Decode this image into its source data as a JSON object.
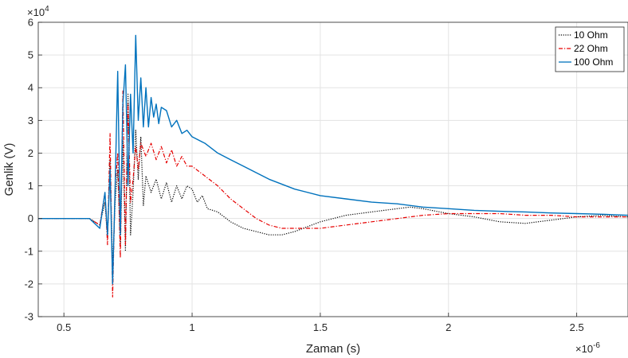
{
  "chart_data": {
    "type": "line",
    "title": "",
    "xlabel": "Zaman (s)",
    "ylabel": "Genlik (V)",
    "x_multiplier_label": "×10",
    "x_multiplier_exp": "-6",
    "y_multiplier_label": "×10",
    "y_multiplier_exp": "4",
    "xlim": [
      0.4,
      2.7
    ],
    "ylim": [
      -3,
      6
    ],
    "x_ticks": [
      0.5,
      1,
      1.5,
      2,
      2.5
    ],
    "x_tick_labels": [
      "0.5",
      "1",
      "1.5",
      "2",
      "2.5"
    ],
    "y_ticks": [
      -3,
      -2,
      -1,
      0,
      1,
      2,
      3,
      4,
      5,
      6
    ],
    "y_tick_labels": [
      "-3",
      "-2",
      "-1",
      "0",
      "1",
      "2",
      "3",
      "4",
      "5",
      "6"
    ],
    "grid": true,
    "legend_position": "top-right",
    "series": [
      {
        "name": "10 Ohm",
        "color": "#000000",
        "style": "dotted",
        "x": [
          0.4,
          0.6,
          0.64,
          0.66,
          0.67,
          0.68,
          0.69,
          0.7,
          0.71,
          0.72,
          0.73,
          0.74,
          0.75,
          0.76,
          0.77,
          0.78,
          0.79,
          0.8,
          0.81,
          0.82,
          0.84,
          0.86,
          0.88,
          0.9,
          0.92,
          0.94,
          0.96,
          0.98,
          1.0,
          1.02,
          1.04,
          1.06,
          1.1,
          1.15,
          1.2,
          1.25,
          1.3,
          1.35,
          1.4,
          1.5,
          1.6,
          1.7,
          1.8,
          1.85,
          1.9,
          2.0,
          2.1,
          2.2,
          2.3,
          2.4,
          2.5,
          2.6,
          2.7
        ],
        "y": [
          0,
          0,
          -0.2,
          0.5,
          -0.6,
          1.8,
          -1.5,
          0.5,
          1.5,
          -0.8,
          2.4,
          -1.0,
          3.8,
          -0.5,
          0.8,
          2.7,
          1.2,
          2.5,
          0.4,
          1.3,
          0.8,
          1.2,
          0.6,
          1.1,
          0.5,
          1.0,
          0.6,
          1.0,
          0.9,
          0.5,
          0.7,
          0.3,
          0.2,
          -0.1,
          -0.3,
          -0.4,
          -0.5,
          -0.5,
          -0.4,
          -0.1,
          0.1,
          0.2,
          0.3,
          0.35,
          0.3,
          0.15,
          0.05,
          -0.1,
          -0.15,
          -0.05,
          0.05,
          0.1,
          0.05
        ]
      },
      {
        "name": "22 Ohm",
        "color": "#e60000",
        "style": "dashdot",
        "x": [
          0.4,
          0.6,
          0.64,
          0.66,
          0.67,
          0.68,
          0.69,
          0.7,
          0.71,
          0.72,
          0.73,
          0.74,
          0.75,
          0.76,
          0.77,
          0.78,
          0.79,
          0.8,
          0.82,
          0.84,
          0.86,
          0.88,
          0.9,
          0.92,
          0.94,
          0.96,
          0.98,
          1.0,
          1.05,
          1.1,
          1.15,
          1.2,
          1.25,
          1.3,
          1.35,
          1.4,
          1.5,
          1.6,
          1.7,
          1.8,
          1.9,
          2.0,
          2.1,
          2.2,
          2.3,
          2.4,
          2.5,
          2.6,
          2.7
        ],
        "y": [
          0,
          0,
          -0.2,
          0.8,
          -0.8,
          2.6,
          -2.4,
          1.0,
          2.0,
          -1.2,
          3.9,
          -0.8,
          3.5,
          0.5,
          1.2,
          2.2,
          1.5,
          2.3,
          1.9,
          2.3,
          1.8,
          2.2,
          1.7,
          2.1,
          1.6,
          1.9,
          1.6,
          1.6,
          1.3,
          1.0,
          0.6,
          0.3,
          0.0,
          -0.2,
          -0.3,
          -0.3,
          -0.3,
          -0.2,
          -0.1,
          0.0,
          0.1,
          0.15,
          0.15,
          0.15,
          0.1,
          0.1,
          0.05,
          0.05,
          0.05
        ]
      },
      {
        "name": "100 Ohm",
        "color": "#0072bd",
        "style": "solid",
        "x": [
          0.4,
          0.6,
          0.64,
          0.66,
          0.67,
          0.68,
          0.69,
          0.7,
          0.71,
          0.72,
          0.73,
          0.74,
          0.75,
          0.76,
          0.77,
          0.78,
          0.79,
          0.8,
          0.81,
          0.82,
          0.83,
          0.84,
          0.85,
          0.86,
          0.87,
          0.88,
          0.9,
          0.92,
          0.94,
          0.96,
          0.98,
          1.0,
          1.05,
          1.1,
          1.15,
          1.2,
          1.3,
          1.4,
          1.5,
          1.6,
          1.7,
          1.8,
          1.9,
          2.0,
          2.1,
          2.2,
          2.3,
          2.4,
          2.5,
          2.6,
          2.7
        ],
        "y": [
          0,
          0,
          -0.3,
          0.8,
          -0.5,
          1.5,
          -2.0,
          1.0,
          4.5,
          -0.5,
          3.5,
          4.7,
          1.0,
          3.8,
          2.0,
          5.6,
          3.0,
          4.3,
          2.8,
          4.0,
          2.8,
          3.7,
          3.1,
          3.5,
          2.9,
          3.4,
          3.3,
          2.8,
          3.0,
          2.6,
          2.7,
          2.5,
          2.3,
          2.0,
          1.8,
          1.6,
          1.2,
          0.9,
          0.7,
          0.6,
          0.5,
          0.45,
          0.35,
          0.3,
          0.25,
          0.22,
          0.2,
          0.17,
          0.15,
          0.13,
          0.1
        ]
      }
    ]
  }
}
